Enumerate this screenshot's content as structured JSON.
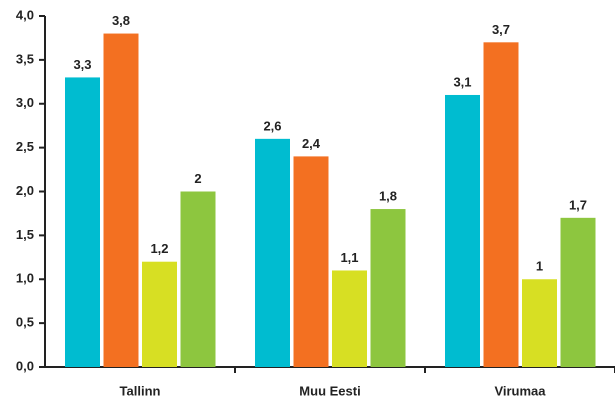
{
  "chart_data": {
    "type": "bar",
    "categories": [
      "Tallinn",
      "Muu Eesti",
      "Virumaa"
    ],
    "series": [
      {
        "color": "#00bcd0",
        "values": [
          3.3,
          2.6,
          3.1
        ],
        "value_labels": [
          "3,3",
          "2,6",
          "3,1"
        ]
      },
      {
        "color": "#f37021",
        "values": [
          3.8,
          2.4,
          3.7
        ],
        "value_labels": [
          "3,8",
          "2,4",
          "3,7"
        ]
      },
      {
        "color": "#d7df23",
        "values": [
          1.2,
          1.1,
          1
        ],
        "value_labels": [
          "1,2",
          "1,1",
          "1"
        ]
      },
      {
        "color": "#8dc63f",
        "values": [
          2,
          1.8,
          1.7
        ],
        "value_labels": [
          "2",
          "1,8",
          "1,7"
        ]
      }
    ],
    "ylim": [
      0,
      4
    ],
    "yticks": [
      {
        "value": 0,
        "label": "0,0"
      },
      {
        "value": 0.5,
        "label": "0,5"
      },
      {
        "value": 1,
        "label": "1,0"
      },
      {
        "value": 1.5,
        "label": "1,5"
      },
      {
        "value": 2,
        "label": "2,0"
      },
      {
        "value": 2.5,
        "label": "2,5"
      },
      {
        "value": 3,
        "label": "3,0"
      },
      {
        "value": 3.5,
        "label": "3,5"
      },
      {
        "value": 4,
        "label": "4,0"
      }
    ],
    "grid": false
  }
}
